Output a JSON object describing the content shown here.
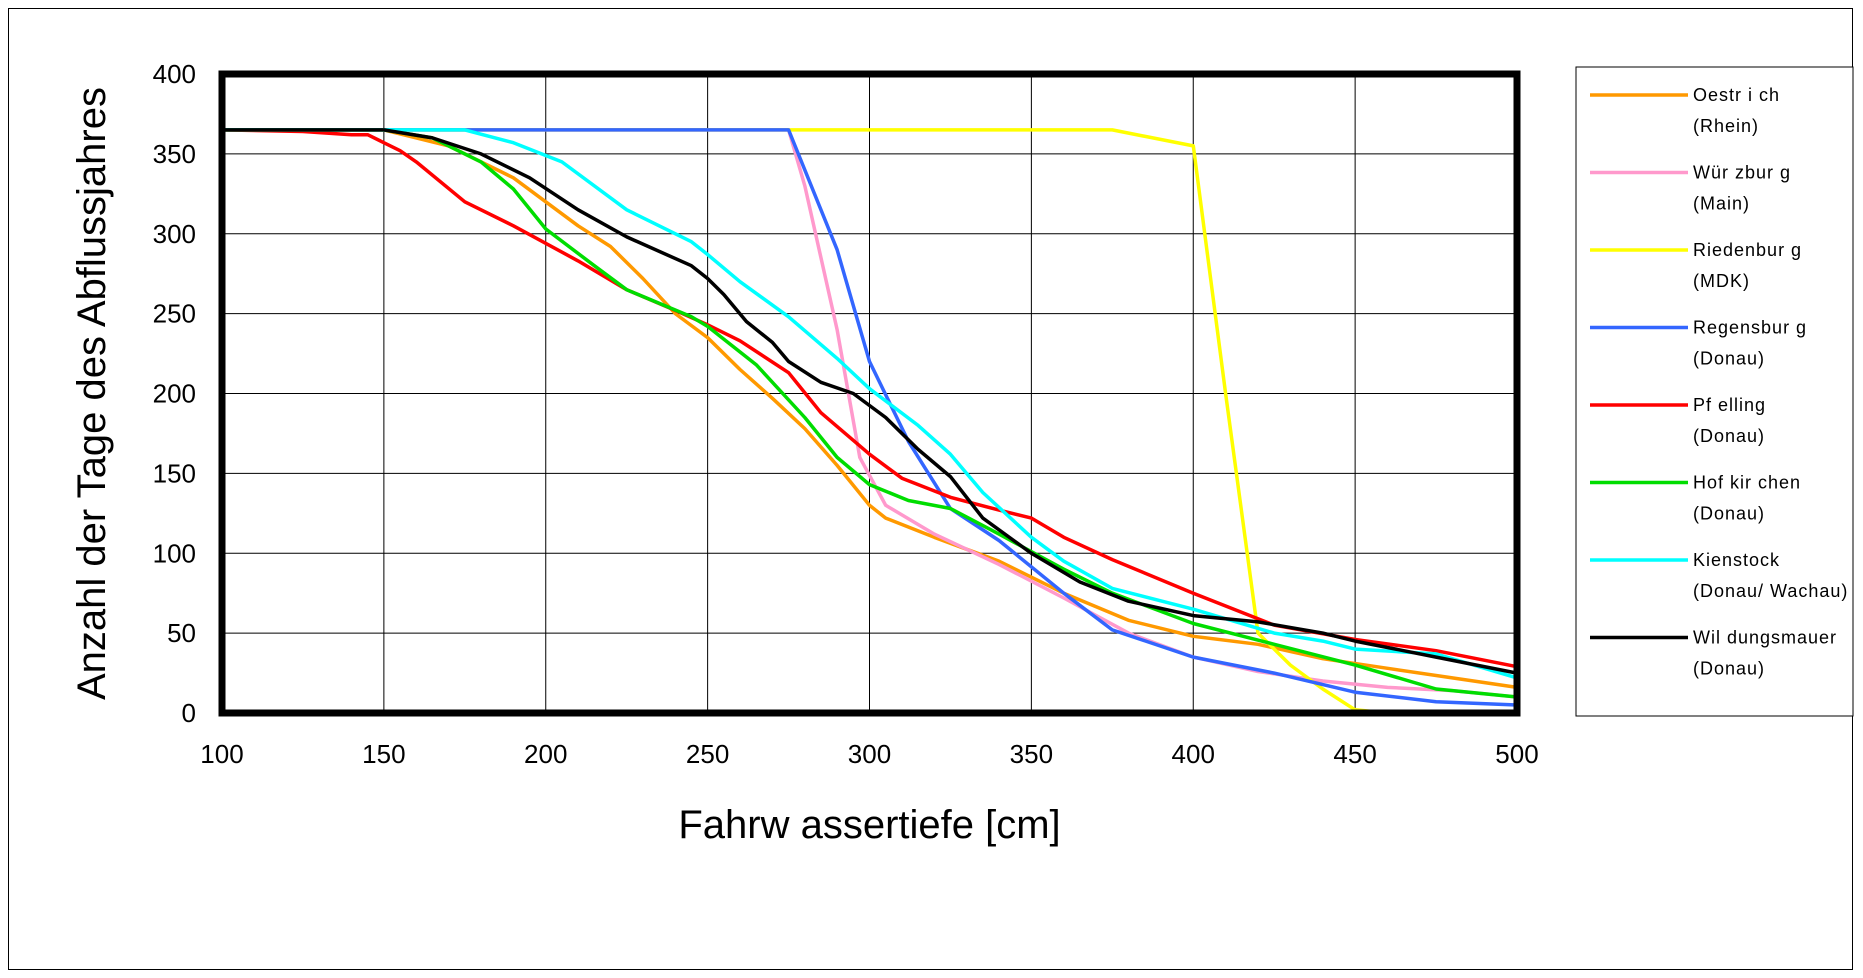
{
  "chart_data": {
    "type": "line",
    "title": "",
    "xlabel": "Fahrw assertiefe [cm]",
    "ylabel": "Anzahl der Tage des Abflussjahres",
    "xlim": [
      100,
      500
    ],
    "ylim": [
      0,
      400
    ],
    "x_ticks": [
      "100",
      "150",
      "200",
      "250",
      "300",
      "350",
      "400",
      "450",
      "500"
    ],
    "y_ticks": [
      "0",
      "50",
      "100",
      "150",
      "200",
      "250",
      "300",
      "350",
      "400"
    ],
    "grid": true,
    "legend_position": "right",
    "series": [
      {
        "name": "Oestr i ch",
        "sub": "(Rhein)",
        "color": "#FF9900",
        "points": [
          [
            100,
            365
          ],
          [
            150,
            365
          ],
          [
            170,
            355
          ],
          [
            190,
            335
          ],
          [
            210,
            305
          ],
          [
            220,
            292
          ],
          [
            230,
            272
          ],
          [
            240,
            250
          ],
          [
            250,
            235
          ],
          [
            260,
            215
          ],
          [
            270,
            197
          ],
          [
            280,
            178
          ],
          [
            290,
            155
          ],
          [
            300,
            130
          ],
          [
            305,
            122
          ],
          [
            320,
            110
          ],
          [
            340,
            95
          ],
          [
            360,
            75
          ],
          [
            380,
            58
          ],
          [
            400,
            48
          ],
          [
            420,
            43
          ],
          [
            440,
            34
          ],
          [
            460,
            28
          ],
          [
            480,
            22
          ],
          [
            500,
            16
          ]
        ]
      },
      {
        "name": "Wür zbur g",
        "sub": "(Main)",
        "color": "#FF99CC",
        "points": [
          [
            100,
            365
          ],
          [
            275,
            365
          ],
          [
            280,
            330
          ],
          [
            290,
            240
          ],
          [
            297,
            160
          ],
          [
            305,
            130
          ],
          [
            320,
            112
          ],
          [
            340,
            93
          ],
          [
            360,
            72
          ],
          [
            380,
            50
          ],
          [
            400,
            35
          ],
          [
            420,
            26
          ],
          [
            440,
            20
          ],
          [
            460,
            16
          ],
          [
            480,
            14
          ],
          [
            500,
            10
          ]
        ]
      },
      {
        "name": "Riedenbur g",
        "sub": "(MDK)",
        "color": "#FFFF00",
        "points": [
          [
            100,
            365
          ],
          [
            375,
            365
          ],
          [
            400,
            355
          ],
          [
            410,
            200
          ],
          [
            420,
            50
          ],
          [
            430,
            30
          ],
          [
            440,
            15
          ],
          [
            450,
            2
          ],
          [
            460,
            0
          ],
          [
            500,
            0
          ]
        ]
      },
      {
        "name": "Regensbur g",
        "sub": "(Donau)",
        "color": "#3366FF",
        "points": [
          [
            100,
            365
          ],
          [
            275,
            365
          ],
          [
            290,
            290
          ],
          [
            300,
            220
          ],
          [
            312,
            170
          ],
          [
            325,
            128
          ],
          [
            340,
            108
          ],
          [
            360,
            75
          ],
          [
            375,
            52
          ],
          [
            400,
            35
          ],
          [
            425,
            25
          ],
          [
            450,
            13
          ],
          [
            475,
            7
          ],
          [
            500,
            5
          ]
        ]
      },
      {
        "name": "Pf elling",
        "sub": "(Donau)",
        "color": "#FF0000",
        "points": [
          [
            100,
            365
          ],
          [
            125,
            364
          ],
          [
            140,
            362
          ],
          [
            145,
            362
          ],
          [
            155,
            352
          ],
          [
            160,
            345
          ],
          [
            175,
            320
          ],
          [
            190,
            305
          ],
          [
            210,
            283
          ],
          [
            225,
            265
          ],
          [
            240,
            252
          ],
          [
            250,
            243
          ],
          [
            260,
            233
          ],
          [
            275,
            213
          ],
          [
            285,
            188
          ],
          [
            300,
            162
          ],
          [
            310,
            147
          ],
          [
            325,
            135
          ],
          [
            340,
            127
          ],
          [
            350,
            122
          ],
          [
            360,
            110
          ],
          [
            375,
            96
          ],
          [
            400,
            75
          ],
          [
            425,
            55
          ],
          [
            450,
            46
          ],
          [
            475,
            39
          ],
          [
            500,
            29
          ]
        ]
      },
      {
        "name": "Hof kir chen",
        "sub": "(Donau)",
        "color": "#00DD00",
        "points": [
          [
            100,
            365
          ],
          [
            150,
            365
          ],
          [
            165,
            360
          ],
          [
            180,
            345
          ],
          [
            190,
            328
          ],
          [
            200,
            303
          ],
          [
            215,
            280
          ],
          [
            225,
            265
          ],
          [
            245,
            248
          ],
          [
            250,
            242
          ],
          [
            265,
            218
          ],
          [
            280,
            185
          ],
          [
            290,
            160
          ],
          [
            300,
            143
          ],
          [
            312,
            133
          ],
          [
            325,
            128
          ],
          [
            340,
            112
          ],
          [
            360,
            90
          ],
          [
            375,
            75
          ],
          [
            400,
            56
          ],
          [
            425,
            43
          ],
          [
            450,
            30
          ],
          [
            475,
            15
          ],
          [
            500,
            10
          ]
        ]
      },
      {
        "name": "Kienstock",
        "sub": "(Donau/ Wachau)",
        "color": "#00FFFF",
        "points": [
          [
            100,
            365
          ],
          [
            175,
            365
          ],
          [
            190,
            357
          ],
          [
            205,
            345
          ],
          [
            225,
            315
          ],
          [
            245,
            295
          ],
          [
            250,
            287
          ],
          [
            260,
            270
          ],
          [
            275,
            248
          ],
          [
            290,
            222
          ],
          [
            300,
            203
          ],
          [
            315,
            180
          ],
          [
            325,
            162
          ],
          [
            335,
            138
          ],
          [
            350,
            110
          ],
          [
            360,
            95
          ],
          [
            375,
            78
          ],
          [
            400,
            65
          ],
          [
            425,
            50
          ],
          [
            440,
            45
          ],
          [
            450,
            40
          ],
          [
            475,
            37
          ],
          [
            500,
            22
          ]
        ]
      },
      {
        "name": "Wil dungsmauer",
        "sub": "(Donau)",
        "color": "#000000",
        "points": [
          [
            100,
            365
          ],
          [
            150,
            365
          ],
          [
            165,
            360
          ],
          [
            180,
            350
          ],
          [
            195,
            335
          ],
          [
            210,
            315
          ],
          [
            225,
            298
          ],
          [
            245,
            280
          ],
          [
            250,
            272
          ],
          [
            255,
            262
          ],
          [
            262,
            245
          ],
          [
            270,
            232
          ],
          [
            275,
            220
          ],
          [
            285,
            207
          ],
          [
            295,
            200
          ],
          [
            305,
            185
          ],
          [
            315,
            165
          ],
          [
            325,
            148
          ],
          [
            335,
            122
          ],
          [
            350,
            100
          ],
          [
            365,
            82
          ],
          [
            380,
            70
          ],
          [
            400,
            61
          ],
          [
            420,
            57
          ],
          [
            440,
            50
          ],
          [
            450,
            45
          ],
          [
            475,
            35
          ],
          [
            500,
            25
          ]
        ]
      }
    ]
  }
}
